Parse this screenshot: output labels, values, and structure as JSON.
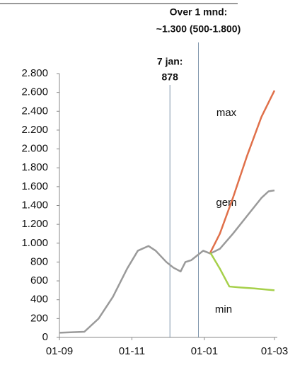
{
  "chart_data": {
    "type": "line",
    "xlim": [
      0,
      181
    ],
    "xticks": [
      {
        "value": 0,
        "label": "01-09"
      },
      {
        "value": 61,
        "label": "01-11"
      },
      {
        "value": 122,
        "label": "01-01"
      },
      {
        "value": 181,
        "label": "01-03"
      }
    ],
    "ylim": [
      0,
      2800
    ],
    "yticks": [
      0,
      200,
      400,
      600,
      800,
      {
        "value": 1000,
        "label": "1.000"
      },
      {
        "value": 1200,
        "label": "1.200"
      },
      {
        "value": 1400,
        "label": "1.400"
      },
      {
        "value": 1600,
        "label": "1.600"
      },
      {
        "value": 1800,
        "label": "1.800"
      },
      {
        "value": 2000,
        "label": "2.000"
      },
      {
        "value": 2200,
        "label": "2.200"
      },
      {
        "value": 2400,
        "label": "2.400"
      },
      {
        "value": 2600,
        "label": "2.600"
      },
      {
        "value": 2800,
        "label": "2.800"
      }
    ],
    "series": [
      {
        "name": "gem",
        "color": "#9a9a9a",
        "x": [
          0,
          21,
          33,
          45,
          57,
          66,
          75,
          81,
          90,
          96,
          102,
          106,
          111,
          117,
          121,
          127,
          135,
          146,
          158,
          170,
          176,
          181
        ],
        "values": [
          50,
          60,
          200,
          430,
          730,
          920,
          970,
          920,
          800,
          740,
          700,
          800,
          820,
          880,
          920,
          890,
          940,
          1100,
          1290,
          1480,
          1550,
          1560
        ]
      },
      {
        "name": "max",
        "color": "#e0704a",
        "x": [
          127,
          135,
          146,
          158,
          170,
          181
        ],
        "values": [
          900,
          1100,
          1480,
          1930,
          2340,
          2620
        ]
      },
      {
        "name": "min",
        "color": "#a6d04a",
        "x": [
          127,
          135,
          143,
          152,
          164,
          181
        ],
        "values": [
          900,
          730,
          540,
          530,
          520,
          500
        ]
      }
    ],
    "annotations": [
      {
        "x": 93,
        "lines": [
          "7 jan:",
          "878"
        ]
      },
      {
        "x": 117,
        "lines": [
          "Over 1 mnd:",
          "~1.300 (500-1.800)"
        ]
      }
    ]
  }
}
